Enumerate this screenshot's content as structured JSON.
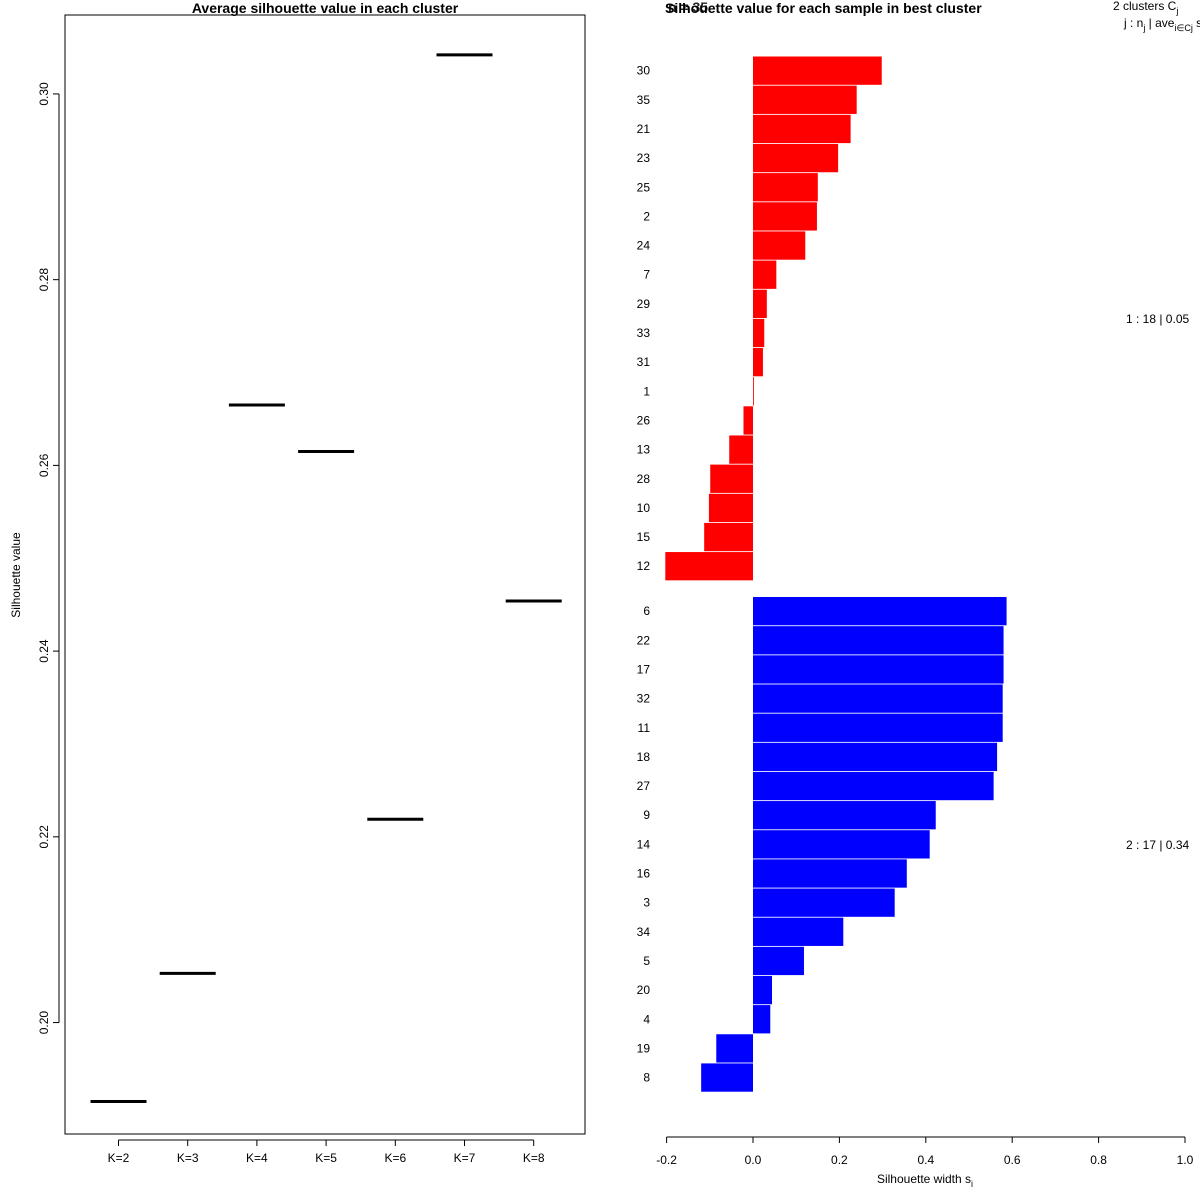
{
  "chart_data": [
    {
      "type": "scatter",
      "marker": "horizontal-segment",
      "title": "Average silhouette value in each cluster",
      "xlabel": "",
      "ylabel": "Silhouette value",
      "categories": [
        "K=2",
        "K=3",
        "K=4",
        "K=5",
        "K=6",
        "K=7",
        "K=8"
      ],
      "values": [
        0.1915,
        0.2053,
        0.2665,
        0.2615,
        0.2219,
        0.3042,
        0.2454
      ],
      "ylim": [
        0.188,
        0.3085
      ],
      "yticks": [
        0.2,
        0.22,
        0.24,
        0.26,
        0.28,
        0.3
      ],
      "ytick_labels": [
        "0.20",
        "0.22",
        "0.24",
        "0.26",
        "0.28",
        "0.30"
      ],
      "grid": false
    },
    {
      "type": "bar",
      "orientation": "horizontal",
      "title": "Silhouette value for each sample in best cluster",
      "title_overlap_text": "n = 35",
      "xlabel": "Silhouette width s",
      "xlabel_subscript": "i",
      "xlim": [
        -0.2,
        1.0
      ],
      "xticks": [
        -0.2,
        0.0,
        0.2,
        0.4,
        0.6,
        0.8,
        1.0
      ],
      "xtick_labels": [
        "-0.2",
        "0.0",
        "0.2",
        "0.4",
        "0.6",
        "0.8",
        "1.0"
      ],
      "header": {
        "line1": "2  clusters  C",
        "line1_sub": "j",
        "line2": "j :  n",
        "line2_sub": "j",
        "line2_rest": " | ave",
        "line2_sub2": "i∈Cj",
        "line2_end": "  s"
      },
      "clusters": [
        {
          "id": 1,
          "color": "#ff0000",
          "summary": "1 :  18  |  0.05",
          "labels": [
            "30",
            "35",
            "21",
            "23",
            "25",
            "2",
            "24",
            "7",
            "29",
            "33",
            "31",
            "1",
            "26",
            "13",
            "28",
            "10",
            "15",
            "12"
          ],
          "values": [
            0.298,
            0.24,
            0.226,
            0.197,
            0.15,
            0.148,
            0.121,
            0.054,
            0.032,
            0.026,
            0.023,
            0.002,
            -0.022,
            -0.055,
            -0.099,
            -0.102,
            -0.113,
            -0.203
          ]
        },
        {
          "id": 2,
          "color": "#0000ff",
          "summary": "2 :  17  |  0.34",
          "labels": [
            "6",
            "22",
            "17",
            "32",
            "11",
            "18",
            "27",
            "9",
            "14",
            "16",
            "3",
            "34",
            "5",
            "20",
            "4",
            "19",
            "8"
          ],
          "values": [
            0.587,
            0.58,
            0.58,
            0.578,
            0.578,
            0.565,
            0.557,
            0.423,
            0.409,
            0.356,
            0.328,
            0.209,
            0.118,
            0.044,
            0.04,
            -0.085,
            -0.12
          ]
        }
      ]
    }
  ]
}
